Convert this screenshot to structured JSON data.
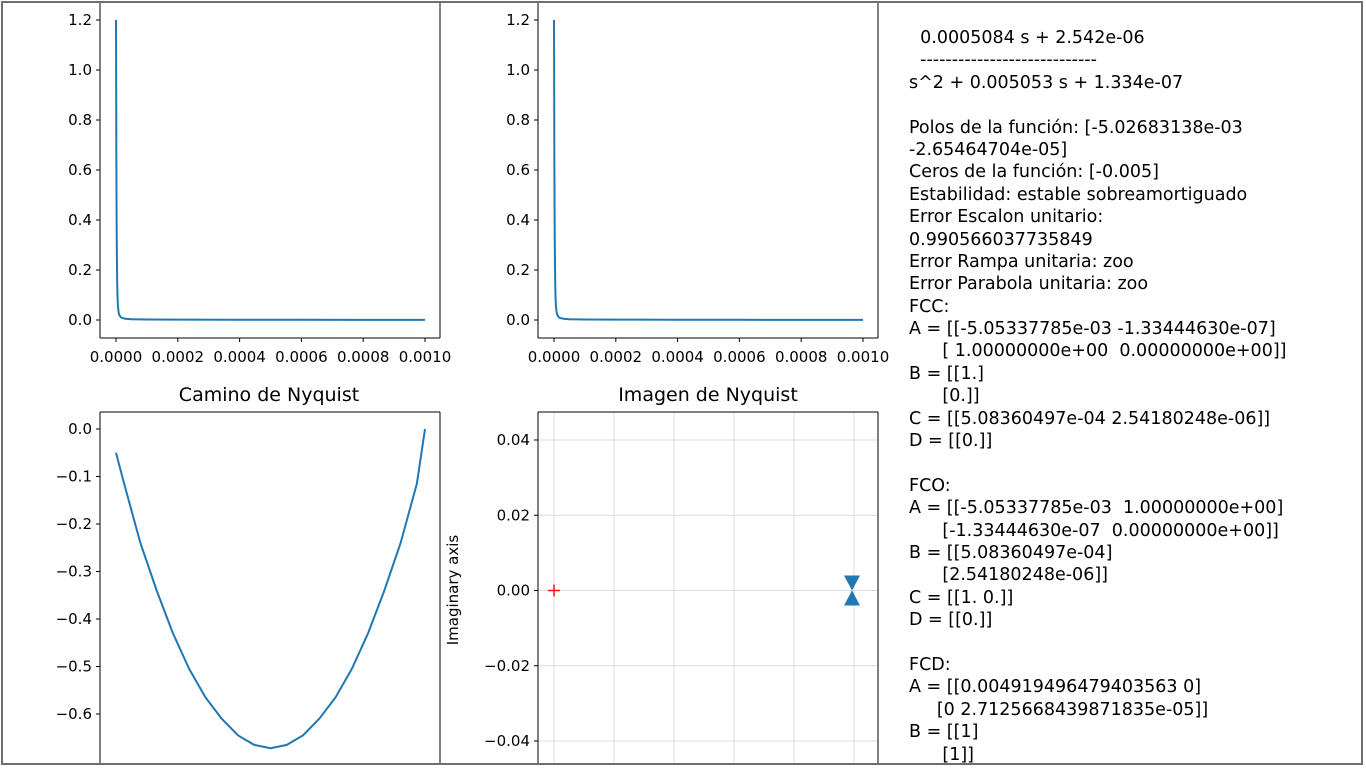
{
  "panels": {
    "p1": {
      "y_ticks": [
        "1.2",
        "1.0",
        "0.8",
        "0.6",
        "0.4",
        "0.2",
        "0.0"
      ],
      "x_ticks": [
        "0.0000",
        "0.0002",
        "0.0004",
        "0.0006",
        "0.0008",
        "0.0010"
      ]
    },
    "p2": {
      "y_ticks": [
        "1.2",
        "1.0",
        "0.8",
        "0.6",
        "0.4",
        "0.2",
        "0.0"
      ],
      "x_ticks": [
        "0.0000",
        "0.0002",
        "0.0004",
        "0.0006",
        "0.0008",
        "0.0010"
      ]
    },
    "p3": {
      "title": "Camino de Nyquist",
      "y_ticks": [
        "0.0",
        "−0.1",
        "−0.2",
        "−0.3",
        "−0.4",
        "−0.5",
        "−0.6"
      ]
    },
    "p4": {
      "title": "Imagen de Nyquist",
      "ylabel": "Imaginary axis",
      "y_ticks": [
        "0.04",
        "0.02",
        "0.00",
        "−0.02",
        "−0.04"
      ]
    }
  },
  "chart_data": [
    {
      "type": "line",
      "x_range": [
        -5e-05,
        0.00105
      ],
      "y_range": [
        -0.04,
        1.2
      ],
      "x_ticks": [
        0,
        0.0002,
        0.0004,
        0.0006,
        0.0008,
        0.001
      ],
      "y_ticks": [
        0.0,
        0.2,
        0.4,
        0.6,
        0.8,
        1.0,
        1.2
      ],
      "series": [
        {
          "color": "#1f77b4",
          "x": [
            0.0,
            5e-07,
            1e-06,
            2e-06,
            3e-06,
            4e-06,
            5e-06,
            6e-06,
            8e-06,
            1e-05,
            1.5e-05,
            2e-05,
            3e-05,
            5e-05,
            0.0001,
            0.0002,
            0.0004,
            0.0006,
            0.0008,
            0.001
          ],
          "y": [
            1.2,
            1.0,
            0.7,
            0.4,
            0.24,
            0.14,
            0.09,
            0.06,
            0.035,
            0.022,
            0.012,
            0.008,
            0.005,
            0.003,
            0.002,
            0.0015,
            0.001,
            0.0008,
            0.0006,
            0.0005
          ]
        }
      ]
    },
    {
      "type": "line",
      "x_range": [
        -5e-05,
        0.00105
      ],
      "y_range": [
        -0.04,
        1.2
      ],
      "x_ticks": [
        0,
        0.0002,
        0.0004,
        0.0006,
        0.0008,
        0.001
      ],
      "y_ticks": [
        0.0,
        0.2,
        0.4,
        0.6,
        0.8,
        1.0,
        1.2
      ],
      "series": [
        {
          "color": "#1f77b4",
          "x": [
            0.0,
            5e-07,
            1e-06,
            2e-06,
            3e-06,
            4e-06,
            5e-06,
            6e-06,
            8e-06,
            1e-05,
            1.5e-05,
            2e-05,
            3e-05,
            5e-05,
            0.0001,
            0.0002,
            0.0004,
            0.0006,
            0.0008,
            0.001
          ],
          "y": [
            1.2,
            1.0,
            0.7,
            0.4,
            0.24,
            0.14,
            0.09,
            0.06,
            0.035,
            0.022,
            0.012,
            0.008,
            0.005,
            0.003,
            0.002,
            0.0015,
            0.001,
            0.0008,
            0.0006,
            0.0005
          ]
        }
      ]
    },
    {
      "type": "line",
      "title": "Camino de Nyquist",
      "x_range": [
        -1,
        1
      ],
      "y_range": [
        -0.67,
        0.02
      ],
      "y_ticks": [
        0.0,
        -0.1,
        -0.2,
        -0.3,
        -0.4,
        -0.5,
        -0.6
      ],
      "x_ticks_visible": false,
      "series": [
        {
          "color": "#1f77b4",
          "x": [
            -0.95,
            -0.9,
            -0.8,
            -0.7,
            -0.6,
            -0.5,
            -0.4,
            -0.3,
            -0.2,
            -0.1,
            0.0,
            0.1,
            0.2,
            0.3,
            0.4,
            0.5,
            0.6,
            0.7,
            0.8,
            0.9,
            0.95
          ],
          "y": [
            -0.05,
            -0.115,
            -0.24,
            -0.34,
            -0.43,
            -0.505,
            -0.565,
            -0.61,
            -0.645,
            -0.665,
            -0.672,
            -0.665,
            -0.645,
            -0.61,
            -0.565,
            -0.505,
            -0.43,
            -0.34,
            -0.24,
            -0.115,
            0.0
          ]
        }
      ]
    },
    {
      "type": "scatter",
      "title": "Imagen de Nyquist",
      "ylabel": "Imaginary axis",
      "x_range": [
        -0.05,
        1.05
      ],
      "y_range": [
        -0.0415,
        0.0465
      ],
      "y_ticks": [
        0.04,
        0.02,
        0.0,
        -0.02,
        -0.04
      ],
      "grid": true,
      "x_ticks_visible": false,
      "series": [
        {
          "marker": "plus",
          "color": "#ff0000",
          "x": [
            0.0
          ],
          "y": [
            0.0
          ]
        },
        {
          "marker": "arrows",
          "color": "#1f77b4",
          "x": [
            1.0
          ],
          "y": [
            0.0
          ]
        }
      ]
    }
  ],
  "info": {
    "lines": [
      "  0.0005084 s + 2.542e-06",
      "  ----------------------------",
      "s^2 + 0.005053 s + 1.334e-07",
      "",
      "Polos de la función: [-5.02683138e-03",
      "-2.65464704e-05]",
      "Ceros de la función: [-0.005]",
      "Estabilidad: estable sobreamortiguado",
      "Error Escalon unitario:",
      "0.990566037735849",
      "Error Rampa unitaria: zoo",
      "Error Parabola unitaria: zoo",
      "FCC:",
      "A = [[-5.05337785e-03 -1.33444630e-07]",
      "      [ 1.00000000e+00  0.00000000e+00]]",
      "B = [[1.]",
      "      [0.]]",
      "C = [[5.08360497e-04 2.54180248e-06]]",
      "D = [[0.]]",
      "",
      "FCO:",
      "A = [[-5.05337785e-03  1.00000000e+00]",
      "      [-1.33444630e-07  0.00000000e+00]]",
      "B = [[5.08360497e-04]",
      "      [2.54180248e-06]]",
      "C = [[1. 0.]]",
      "D = [[0.]]",
      "",
      "FCD:",
      "A = [[0.004919496479403563 0]",
      "     [0 2.7125668439871835e-05]]",
      "B = [[1]",
      "      [1]]"
    ]
  }
}
